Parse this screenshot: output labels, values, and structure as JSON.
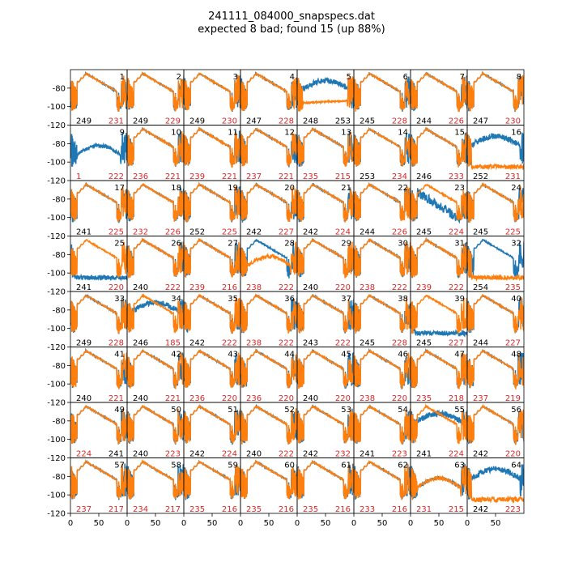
{
  "title_line1": "241111_084000_snapspecs.dat",
  "title_line2": "expected 8 bad; found 15 (up 88%)",
  "colors": {
    "series_a": "#1f77b4",
    "series_b": "#ff7f0e",
    "bad": "#d62728",
    "good": "#000000"
  },
  "chart_data": {
    "type": "line",
    "layout": "8x8 grid of small multiples, shared axes",
    "x_range": [
      0,
      100
    ],
    "x_ticks": [
      0,
      50
    ],
    "y_range": [
      -120,
      -60
    ],
    "y_ticks": [
      -80,
      -100,
      -120
    ],
    "series_names": [],
    "panels": [
      {
        "n": 1,
        "left": "249",
        "right": "231",
        "left_bad": false,
        "right_bad": true,
        "a": "normal",
        "b": "normal"
      },
      {
        "n": 2,
        "left": "249",
        "right": "229",
        "left_bad": false,
        "right_bad": true,
        "a": "normal",
        "b": "normal"
      },
      {
        "n": 3,
        "left": "249",
        "right": "230",
        "left_bad": false,
        "right_bad": true,
        "a": "normal",
        "b": "normal"
      },
      {
        "n": 4,
        "left": "247",
        "right": "228",
        "left_bad": false,
        "right_bad": true,
        "a": "normal",
        "b": "normal"
      },
      {
        "n": 5,
        "left": "248",
        "right": "253",
        "left_bad": false,
        "right_bad": false,
        "a": "bad_hump",
        "b": "bad_flat"
      },
      {
        "n": 6,
        "left": "245",
        "right": "228",
        "left_bad": false,
        "right_bad": true,
        "a": "normal",
        "b": "normal"
      },
      {
        "n": 7,
        "left": "244",
        "right": "226",
        "left_bad": false,
        "right_bad": true,
        "a": "normal",
        "b": "normal"
      },
      {
        "n": 8,
        "left": "247",
        "right": "230",
        "left_bad": false,
        "right_bad": true,
        "a": "normal",
        "b": "normal"
      },
      {
        "n": 9,
        "left": "1",
        "right": "222",
        "left_bad": true,
        "right_bad": true,
        "a": "bad_low",
        "b": "none"
      },
      {
        "n": 10,
        "left": "236",
        "right": "221",
        "left_bad": true,
        "right_bad": true,
        "a": "normal",
        "b": "normal"
      },
      {
        "n": 11,
        "left": "239",
        "right": "221",
        "left_bad": true,
        "right_bad": true,
        "a": "normal",
        "b": "normal"
      },
      {
        "n": 12,
        "left": "237",
        "right": "221",
        "left_bad": true,
        "right_bad": true,
        "a": "normal",
        "b": "normal"
      },
      {
        "n": 13,
        "left": "235",
        "right": "215",
        "left_bad": true,
        "right_bad": true,
        "a": "normal",
        "b": "normal"
      },
      {
        "n": 14,
        "left": "253",
        "right": "234",
        "left_bad": false,
        "right_bad": true,
        "a": "normal",
        "b": "normal"
      },
      {
        "n": 15,
        "left": "246",
        "right": "233",
        "left_bad": false,
        "right_bad": true,
        "a": "normal",
        "b": "normal"
      },
      {
        "n": 16,
        "left": "252",
        "right": "231",
        "left_bad": false,
        "right_bad": true,
        "a": "bad_hump",
        "b": "bad_floor"
      },
      {
        "n": 17,
        "left": "241",
        "right": "225",
        "left_bad": false,
        "right_bad": true,
        "a": "normal",
        "b": "normal"
      },
      {
        "n": 18,
        "left": "232",
        "right": "226",
        "left_bad": true,
        "right_bad": true,
        "a": "normal",
        "b": "normal"
      },
      {
        "n": 19,
        "left": "252",
        "right": "225",
        "left_bad": false,
        "right_bad": true,
        "a": "normal",
        "b": "normal"
      },
      {
        "n": 20,
        "left": "242",
        "right": "227",
        "left_bad": false,
        "right_bad": true,
        "a": "normal",
        "b": "normal"
      },
      {
        "n": 21,
        "left": "242",
        "right": "224",
        "left_bad": false,
        "right_bad": true,
        "a": "normal",
        "b": "normal"
      },
      {
        "n": 22,
        "left": "244",
        "right": "226",
        "left_bad": false,
        "right_bad": true,
        "a": "normal",
        "b": "normal"
      },
      {
        "n": 23,
        "left": "245",
        "right": "224",
        "left_bad": false,
        "right_bad": true,
        "a": "bad_noisy",
        "b": "normal"
      },
      {
        "n": 24,
        "left": "245",
        "right": "225",
        "left_bad": false,
        "right_bad": true,
        "a": "normal",
        "b": "normal"
      },
      {
        "n": 25,
        "left": "241",
        "right": "220",
        "left_bad": false,
        "right_bad": true,
        "a": "bad_floor",
        "b": "normal"
      },
      {
        "n": 26,
        "left": "240",
        "right": "222",
        "left_bad": false,
        "right_bad": true,
        "a": "normal",
        "b": "normal"
      },
      {
        "n": 27,
        "left": "239",
        "right": "216",
        "left_bad": true,
        "right_bad": true,
        "a": "normal",
        "b": "normal"
      },
      {
        "n": 28,
        "left": "238",
        "right": "222",
        "left_bad": true,
        "right_bad": true,
        "a": "normal",
        "b": "bad_low"
      },
      {
        "n": 29,
        "left": "240",
        "right": "220",
        "left_bad": false,
        "right_bad": true,
        "a": "normal",
        "b": "normal"
      },
      {
        "n": 30,
        "left": "238",
        "right": "222",
        "left_bad": true,
        "right_bad": true,
        "a": "normal",
        "b": "normal"
      },
      {
        "n": 31,
        "left": "239",
        "right": "222",
        "left_bad": true,
        "right_bad": true,
        "a": "normal",
        "b": "normal"
      },
      {
        "n": 32,
        "left": "254",
        "right": "235",
        "left_bad": false,
        "right_bad": true,
        "a": "normal",
        "b": "bad_floor"
      },
      {
        "n": 33,
        "left": "249",
        "right": "228",
        "left_bad": false,
        "right_bad": true,
        "a": "normal",
        "b": "normal"
      },
      {
        "n": 34,
        "left": "246",
        "right": "185",
        "left_bad": false,
        "right_bad": true,
        "a": "bad_hump",
        "b": "normal"
      },
      {
        "n": 35,
        "left": "242",
        "right": "222",
        "left_bad": false,
        "right_bad": true,
        "a": "normal",
        "b": "normal"
      },
      {
        "n": 36,
        "left": "238",
        "right": "222",
        "left_bad": true,
        "right_bad": true,
        "a": "normal",
        "b": "normal"
      },
      {
        "n": 37,
        "left": "243",
        "right": "222",
        "left_bad": false,
        "right_bad": true,
        "a": "normal",
        "b": "normal"
      },
      {
        "n": 38,
        "left": "245",
        "right": "228",
        "left_bad": false,
        "right_bad": true,
        "a": "normal",
        "b": "normal"
      },
      {
        "n": 39,
        "left": "245",
        "right": "227",
        "left_bad": false,
        "right_bad": true,
        "a": "bad_floor",
        "b": "normal"
      },
      {
        "n": 40,
        "left": "244",
        "right": "227",
        "left_bad": false,
        "right_bad": true,
        "a": "normal",
        "b": "normal"
      },
      {
        "n": 41,
        "left": "240",
        "right": "221",
        "left_bad": false,
        "right_bad": true,
        "a": "normal",
        "b": "normal"
      },
      {
        "n": 42,
        "left": "240",
        "right": "221",
        "left_bad": false,
        "right_bad": true,
        "a": "normal",
        "b": "normal"
      },
      {
        "n": 43,
        "left": "236",
        "right": "220",
        "left_bad": true,
        "right_bad": true,
        "a": "normal",
        "b": "normal"
      },
      {
        "n": 44,
        "left": "236",
        "right": "220",
        "left_bad": true,
        "right_bad": true,
        "a": "normal",
        "b": "normal"
      },
      {
        "n": 45,
        "left": "240",
        "right": "220",
        "left_bad": false,
        "right_bad": true,
        "a": "normal",
        "b": "normal"
      },
      {
        "n": 46,
        "left": "238",
        "right": "220",
        "left_bad": true,
        "right_bad": true,
        "a": "normal",
        "b": "normal"
      },
      {
        "n": 47,
        "left": "235",
        "right": "218",
        "left_bad": true,
        "right_bad": true,
        "a": "normal",
        "b": "normal"
      },
      {
        "n": 48,
        "left": "237",
        "right": "219",
        "left_bad": true,
        "right_bad": true,
        "a": "normal",
        "b": "normal"
      },
      {
        "n": 49,
        "left": "224",
        "right": "241",
        "left_bad": true,
        "right_bad": false,
        "a": "normal",
        "b": "normal"
      },
      {
        "n": 50,
        "left": "240",
        "right": "223",
        "left_bad": false,
        "right_bad": true,
        "a": "normal",
        "b": "normal"
      },
      {
        "n": 51,
        "left": "242",
        "right": "224",
        "left_bad": false,
        "right_bad": true,
        "a": "normal",
        "b": "normal"
      },
      {
        "n": 52,
        "left": "240",
        "right": "222",
        "left_bad": false,
        "right_bad": true,
        "a": "normal",
        "b": "normal"
      },
      {
        "n": 53,
        "left": "242",
        "right": "232",
        "left_bad": false,
        "right_bad": true,
        "a": "normal",
        "b": "normal"
      },
      {
        "n": 54,
        "left": "241",
        "right": "223",
        "left_bad": false,
        "right_bad": true,
        "a": "normal",
        "b": "normal"
      },
      {
        "n": 55,
        "left": "241",
        "right": "224",
        "left_bad": false,
        "right_bad": true,
        "a": "bad_hump",
        "b": "normal"
      },
      {
        "n": 56,
        "left": "242",
        "right": "220",
        "left_bad": false,
        "right_bad": true,
        "a": "normal",
        "b": "normal"
      },
      {
        "n": 57,
        "left": "237",
        "right": "217",
        "left_bad": true,
        "right_bad": true,
        "a": "normal",
        "b": "normal"
      },
      {
        "n": 58,
        "left": "234",
        "right": "217",
        "left_bad": true,
        "right_bad": true,
        "a": "normal",
        "b": "normal"
      },
      {
        "n": 59,
        "left": "235",
        "right": "216",
        "left_bad": true,
        "right_bad": true,
        "a": "normal",
        "b": "normal"
      },
      {
        "n": 60,
        "left": "235",
        "right": "216",
        "left_bad": true,
        "right_bad": true,
        "a": "normal",
        "b": "normal"
      },
      {
        "n": 61,
        "left": "235",
        "right": "216",
        "left_bad": true,
        "right_bad": true,
        "a": "normal",
        "b": "normal"
      },
      {
        "n": 62,
        "left": "233",
        "right": "216",
        "left_bad": true,
        "right_bad": true,
        "a": "normal",
        "b": "normal"
      },
      {
        "n": 63,
        "left": "231",
        "right": "215",
        "left_bad": true,
        "right_bad": true,
        "a": "bad_low",
        "b": "bad_low"
      },
      {
        "n": 64,
        "left": "242",
        "right": "223",
        "left_bad": false,
        "right_bad": true,
        "a": "bad_hump",
        "b": "bad_floor"
      }
    ]
  }
}
